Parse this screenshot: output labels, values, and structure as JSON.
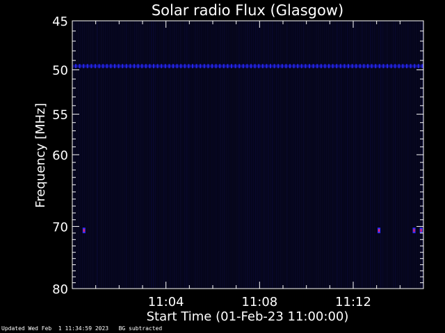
{
  "chart_data": {
    "type": "heatmap",
    "title": "Solar radio Flux (Glasgow)",
    "xlabel": "Start Time (01-Feb-23 11:00:00)",
    "ylabel": "Frequency [MHz]",
    "xlim_minutes": [
      0,
      15
    ],
    "ylim_mhz": [
      45,
      80
    ],
    "y_scale": "log",
    "y_ticks": [
      45,
      50,
      55,
      60,
      70,
      80
    ],
    "x_ticks": [
      {
        "minute": 4,
        "label": "11:04"
      },
      {
        "minute": 8,
        "label": "11:08"
      },
      {
        "minute": 12,
        "label": "11:12"
      }
    ],
    "features": [
      {
        "name": "",
        "frequency_mhz": 49.6,
        "minute_start": 0,
        "minute_end": 15,
        "color": "#1a1ad6",
        "kind": "band"
      },
      {
        "name": "",
        "frequency_mhz": 70.6,
        "minute": 0.5,
        "color": "#ff2050",
        "kind": "spot"
      },
      {
        "name": "",
        "frequency_mhz": 70.6,
        "minute": 13.1,
        "color": "#ff2050",
        "kind": "spot"
      },
      {
        "name": "",
        "frequency_mhz": 70.6,
        "minute": 14.6,
        "color": "#ff2050",
        "kind": "spot"
      },
      {
        "name": "",
        "frequency_mhz": 70.6,
        "minute": 14.9,
        "color": "#ff2050",
        "kind": "spot"
      }
    ],
    "background_color": "#000000",
    "plot_fill": "#05051a",
    "axis_color": "#ffffff"
  },
  "footer": {
    "updated": "Updated Wed Feb  1 11:34:59 2023",
    "note": "BG subtracted"
  }
}
